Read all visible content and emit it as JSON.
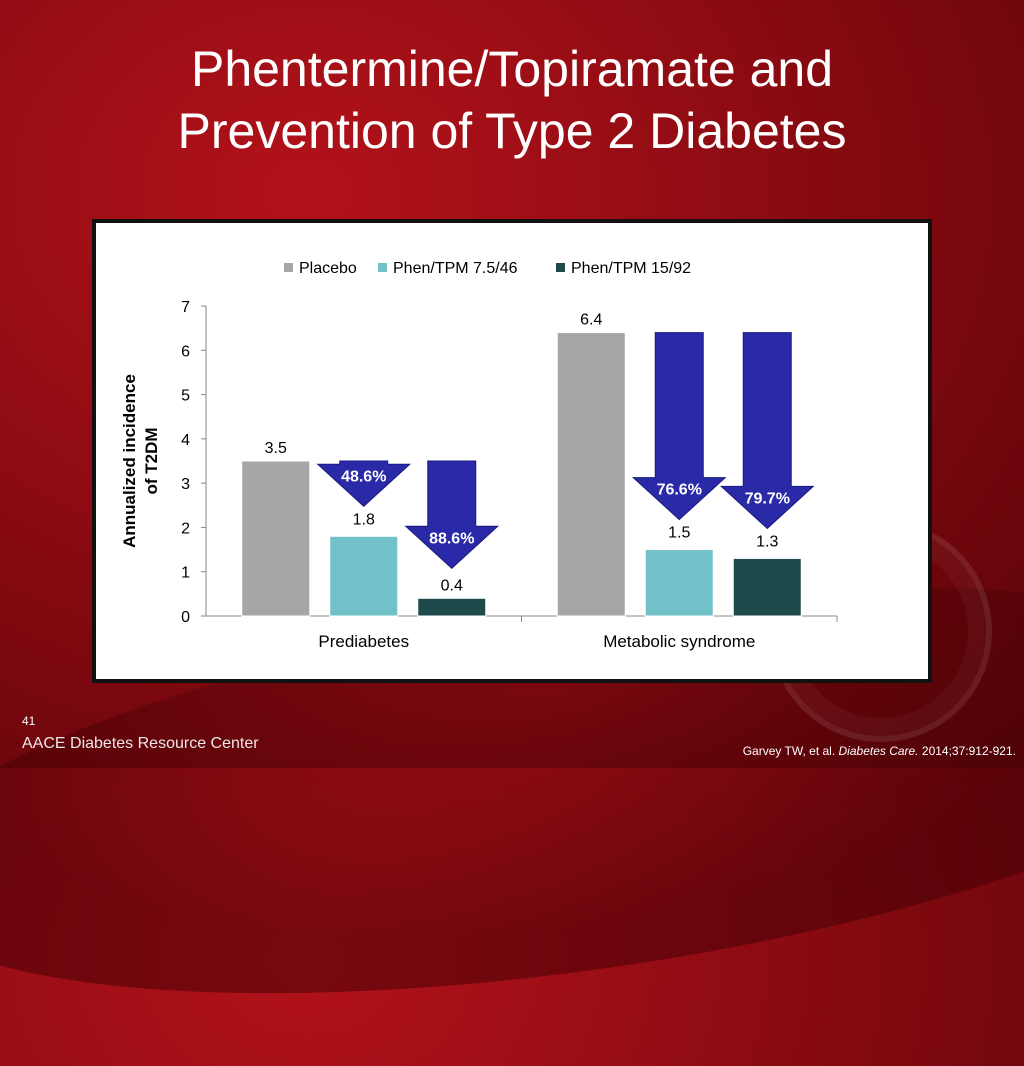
{
  "title_line1": "Phentermine/Topiramate and",
  "title_line2": "Prevention of Type 2 Diabetes",
  "slide_number": "41",
  "footer_brand": "AACE Diabetes Resource Center",
  "citation": {
    "authors": "Garvey TW, et al.",
    "journal": "Diabetes Care.",
    "details": "2014;37:912-921."
  },
  "colors": {
    "placebo": "#a6a6a6",
    "phen_low": "#72c0c8",
    "phen_high": "#1e4a4c",
    "arrow": "#2a2aa8",
    "background": "#8d0b12"
  },
  "chart_data": {
    "type": "bar",
    "categories": [
      "Prediabetes",
      "Metabolic syndrome"
    ],
    "series": [
      {
        "name": "Placebo",
        "values": [
          3.5,
          6.4
        ]
      },
      {
        "name": "Phen/TPM 7.5/46",
        "values": [
          1.8,
          1.5
        ]
      },
      {
        "name": "Phen/TPM 15/92",
        "values": [
          0.4,
          1.3
        ]
      }
    ],
    "data_labels": [
      [
        "3.5",
        "1.8",
        "0.4"
      ],
      [
        "6.4",
        "1.5",
        "1.3"
      ]
    ],
    "reduction_arrows": [
      {
        "category": 0,
        "series": 1,
        "from": 3.5,
        "to": 1.8,
        "label": "48.6%"
      },
      {
        "category": 0,
        "series": 2,
        "from": 3.5,
        "to": 0.4,
        "label": "88.6%"
      },
      {
        "category": 1,
        "series": 1,
        "from": 6.4,
        "to": 1.5,
        "label": "76.6%"
      },
      {
        "category": 1,
        "series": 2,
        "from": 6.4,
        "to": 1.3,
        "label": "79.7%"
      }
    ],
    "ylabel_line1": "Annualized incidence",
    "ylabel_line2": "of T2DM",
    "ylim": [
      0,
      7
    ],
    "yticks": [
      0,
      1,
      2,
      3,
      4,
      5,
      6,
      7
    ],
    "legend_position": "top",
    "grid": false
  }
}
